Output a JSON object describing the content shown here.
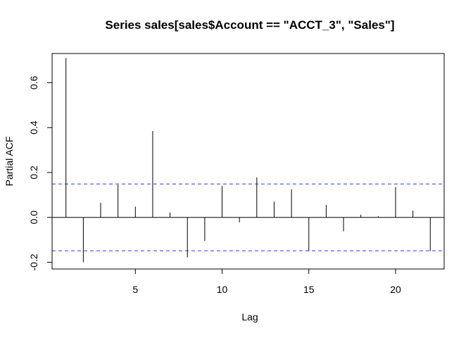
{
  "chart_data": {
    "type": "bar",
    "title": "Series  sales[sales$Account == \"ACCT_3\", \"Sales\"]",
    "xlabel": "Lag",
    "ylabel": "Partial ACF",
    "xlim": [
      0.2,
      22.8
    ],
    "ylim": [
      -0.23,
      0.73
    ],
    "x_ticks": [
      5,
      10,
      15,
      20
    ],
    "x_tick_labels": [
      "5",
      "10",
      "15",
      "20"
    ],
    "y_ticks": [
      -0.2,
      0.0,
      0.2,
      0.4,
      0.6
    ],
    "y_tick_labels": [
      "-0.2",
      "0.0",
      "0.2",
      "0.4",
      "0.6"
    ],
    "confidence_bound": 0.149,
    "grid": false,
    "lags": [
      1,
      2,
      3,
      4,
      5,
      6,
      7,
      8,
      9,
      10,
      11,
      12,
      13,
      14,
      15,
      16,
      17,
      18,
      19,
      20,
      21,
      22
    ],
    "values": [
      0.71,
      -0.2,
      0.065,
      0.145,
      0.048,
      0.385,
      0.022,
      -0.178,
      -0.105,
      0.14,
      -0.022,
      0.178,
      0.07,
      0.125,
      -0.15,
      0.055,
      -0.062,
      0.012,
      0.005,
      0.135,
      0.03,
      -0.15
    ],
    "colors": {
      "spike": "#000000",
      "confidence": "#3333ee",
      "axis": "#000000"
    }
  }
}
